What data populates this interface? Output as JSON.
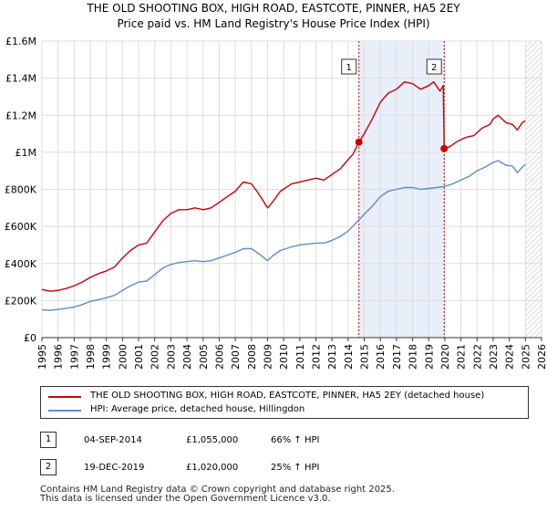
{
  "chart_data": {
    "type": "line",
    "title": "THE OLD SHOOTING BOX, HIGH ROAD, EASTCOTE, PINNER, HA5 2EY",
    "subtitle": "Price paid vs. HM Land Registry's House Price Index (HPI)",
    "xlim": [
      1995,
      2026
    ],
    "ylim": [
      0,
      1600000
    ],
    "x_ticks": [
      "1995",
      "1996",
      "1997",
      "1998",
      "1999",
      "2000",
      "2001",
      "2002",
      "2003",
      "2004",
      "2005",
      "2006",
      "2007",
      "2008",
      "2009",
      "2010",
      "2011",
      "2012",
      "2013",
      "2014",
      "2015",
      "2016",
      "2017",
      "2018",
      "2019",
      "2020",
      "2021",
      "2022",
      "2023",
      "2024",
      "2025",
      "2026"
    ],
    "y_ticks": [
      {
        "value": 0,
        "label": "£0"
      },
      {
        "value": 200000,
        "label": "£200K"
      },
      {
        "value": 400000,
        "label": "£400K"
      },
      {
        "value": 600000,
        "label": "£600K"
      },
      {
        "value": 800000,
        "label": "£800K"
      },
      {
        "value": 1000000,
        "label": "£1M"
      },
      {
        "value": 1200000,
        "label": "£1.2M"
      },
      {
        "value": 1400000,
        "label": "£1.4M"
      },
      {
        "value": 1600000,
        "label": "£1.6M"
      }
    ],
    "grid": true,
    "legend_position": "below",
    "highlight_span": [
      2014.67,
      2019.96
    ],
    "future_hatch_from": 2025.0,
    "series": [
      {
        "name": "THE OLD SHOOTING BOX, HIGH ROAD, EASTCOTE, PINNER, HA5 2EY (detached house)",
        "color": "#cc0000",
        "x": [
          1995.0,
          1995.5,
          1996.0,
          1996.5,
          1997.0,
          1997.5,
          1998.0,
          1998.5,
          1999.0,
          1999.5,
          2000.0,
          2000.5,
          2001.0,
          2001.5,
          2002.0,
          2002.5,
          2003.0,
          2003.5,
          2004.0,
          2004.5,
          2005.0,
          2005.5,
          2006.0,
          2006.5,
          2007.0,
          2007.5,
          2008.0,
          2008.5,
          2009.0,
          2009.3,
          2009.8,
          2010.5,
          2011.0,
          2011.5,
          2012.0,
          2012.5,
          2013.0,
          2013.5,
          2014.0,
          2014.3,
          2014.67,
          2015.0,
          2015.5,
          2016.0,
          2016.5,
          2017.0,
          2017.5,
          2018.0,
          2018.5,
          2019.0,
          2019.3,
          2019.7,
          2019.9,
          2019.96,
          2020.3,
          2020.8,
          2021.3,
          2021.8,
          2022.3,
          2022.8,
          2023.0,
          2023.3,
          2023.8,
          2024.2,
          2024.5,
          2024.8,
          2025.0
        ],
        "y": [
          260000,
          250000,
          255000,
          265000,
          280000,
          300000,
          325000,
          345000,
          360000,
          380000,
          430000,
          470000,
          500000,
          510000,
          570000,
          630000,
          670000,
          690000,
          690000,
          700000,
          690000,
          700000,
          730000,
          760000,
          790000,
          840000,
          830000,
          770000,
          700000,
          730000,
          790000,
          830000,
          840000,
          850000,
          860000,
          850000,
          880000,
          910000,
          960000,
          990000,
          1055000,
          1100000,
          1180000,
          1270000,
          1320000,
          1340000,
          1380000,
          1370000,
          1340000,
          1360000,
          1380000,
          1330000,
          1360000,
          1020000,
          1030000,
          1060000,
          1080000,
          1090000,
          1130000,
          1150000,
          1180000,
          1200000,
          1160000,
          1150000,
          1120000,
          1160000,
          1170000
        ]
      },
      {
        "name": "HPI: Average price, detached house, Hillingdon",
        "color": "#5b8dc8",
        "x": [
          1995.0,
          1995.5,
          1996.0,
          1996.5,
          1997.0,
          1997.5,
          1998.0,
          1998.5,
          1999.0,
          1999.5,
          2000.0,
          2000.5,
          2001.0,
          2001.5,
          2002.0,
          2002.5,
          2003.0,
          2003.5,
          2004.0,
          2004.5,
          2005.0,
          2005.5,
          2006.0,
          2006.5,
          2007.0,
          2007.5,
          2008.0,
          2008.5,
          2009.0,
          2009.3,
          2009.8,
          2010.5,
          2011.0,
          2011.5,
          2012.0,
          2012.5,
          2013.0,
          2013.5,
          2014.0,
          2014.67,
          2015.0,
          2015.5,
          2016.0,
          2016.5,
          2017.0,
          2017.5,
          2018.0,
          2018.5,
          2019.0,
          2019.5,
          2019.96,
          2020.5,
          2021.0,
          2021.5,
          2022.0,
          2022.5,
          2023.0,
          2023.3,
          2023.8,
          2024.2,
          2024.5,
          2024.8,
          2025.0
        ],
        "y": [
          150000,
          147000,
          152000,
          158000,
          165000,
          178000,
          195000,
          205000,
          215000,
          228000,
          255000,
          280000,
          300000,
          305000,
          340000,
          375000,
          395000,
          405000,
          410000,
          415000,
          410000,
          415000,
          430000,
          445000,
          460000,
          480000,
          480000,
          450000,
          415000,
          440000,
          470000,
          490000,
          500000,
          505000,
          510000,
          510000,
          525000,
          545000,
          575000,
          635000,
          665000,
          710000,
          760000,
          790000,
          800000,
          810000,
          810000,
          800000,
          805000,
          810000,
          815000,
          830000,
          850000,
          870000,
          900000,
          920000,
          945000,
          955000,
          930000,
          925000,
          890000,
          920000,
          935000
        ]
      }
    ],
    "transactions": [
      {
        "id": "1",
        "x": 2014.67,
        "y": 1055000,
        "date": "04-SEP-2014",
        "price": "£1,055,000",
        "hpi_change": "66% ↑ HPI"
      },
      {
        "id": "2",
        "x": 2019.96,
        "y": 1020000,
        "date": "19-DEC-2019",
        "price": "£1,020,000",
        "hpi_change": "25% ↑ HPI"
      }
    ]
  },
  "legend": {
    "property_label": "THE OLD SHOOTING BOX, HIGH ROAD, EASTCOTE, PINNER, HA5 2EY (detached house)",
    "hpi_label": "HPI: Average price, detached house, Hillingdon",
    "property_color": "#cc0000",
    "hpi_color": "#5b8dc8"
  },
  "footer": {
    "line1": "Contains HM Land Registry data © Crown copyright and database right 2025.",
    "line2": "This data is licensed under the Open Government Licence v3.0."
  }
}
